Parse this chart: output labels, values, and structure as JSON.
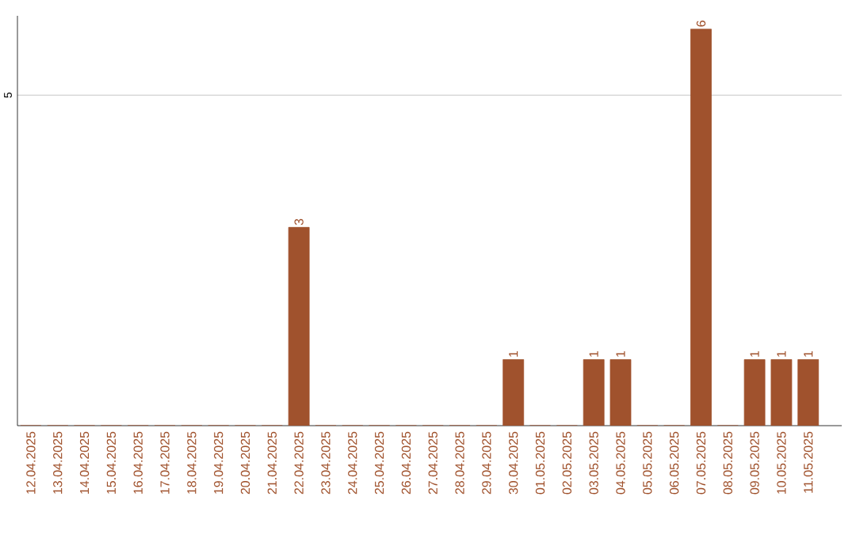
{
  "chart_data": {
    "type": "bar",
    "categories": [
      "12.04.2025",
      "13.04.2025",
      "14.04.2025",
      "15.04.2025",
      "16.04.2025",
      "17.04.2025",
      "18.04.2025",
      "19.04.2025",
      "20.04.2025",
      "21.04.2025",
      "22.04.2025",
      "23.04.2025",
      "24.04.2025",
      "25.04.2025",
      "26.04.2025",
      "27.04.2025",
      "28.04.2025",
      "29.04.2025",
      "30.04.2025",
      "01.05.2025",
      "02.05.2025",
      "03.05.2025",
      "04.05.2025",
      "05.05.2025",
      "06.05.2025",
      "07.05.2025",
      "08.05.2025",
      "09.05.2025",
      "10.05.2025",
      "11.05.2025"
    ],
    "values": [
      0,
      0,
      0,
      0,
      0,
      0,
      0,
      0,
      0,
      0,
      3,
      0,
      0,
      0,
      0,
      0,
      0,
      0,
      1,
      0,
      0,
      1,
      1,
      0,
      0,
      6,
      0,
      1,
      1,
      1
    ],
    "value_labels": [
      null,
      null,
      null,
      null,
      null,
      null,
      null,
      null,
      null,
      null,
      "3",
      null,
      null,
      null,
      null,
      null,
      null,
      null,
      "1",
      null,
      null,
      "1",
      "1",
      null,
      null,
      "6",
      null,
      "1",
      "1",
      "1"
    ],
    "color": "#a0522d",
    "ylim": [
      0,
      6.2
    ],
    "yticks": [
      5
    ],
    "grid": "y"
  }
}
